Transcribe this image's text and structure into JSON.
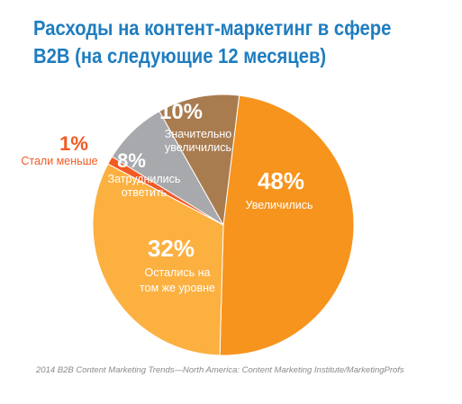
{
  "chart_data": {
    "type": "pie",
    "title_lines": [
      "Расходы на контент-маркетинг в сфере",
      "B2B (на следующие 12 месяцев)"
    ],
    "slices": [
      {
        "key": "increased",
        "value": 48,
        "label": "48%",
        "desc": [
          "Увеличились"
        ],
        "color": "#f7941d",
        "text_color": "#ffffff"
      },
      {
        "key": "same",
        "value": 32,
        "label": "32%",
        "desc": [
          "Остались на",
          "том же уровне"
        ],
        "color": "#fbb040",
        "text_color": "#ffffff"
      },
      {
        "key": "less",
        "value": 1,
        "label": "1%",
        "desc": [
          "Стали меньше"
        ],
        "color": "#f15a24",
        "text_color": "#f15a24"
      },
      {
        "key": "hard",
        "value": 8,
        "label": "8%",
        "desc": [
          "Затруднились",
          "ответить"
        ],
        "color": "#a7a9ac",
        "text_color": "#ffffff"
      },
      {
        "key": "significant",
        "value": 10,
        "label": "10%",
        "desc": [
          "Значительно",
          "увеличились"
        ],
        "color": "#a97c50",
        "text_color": "#ffffff"
      }
    ],
    "legend": "none"
  },
  "source": "2014 B2B Content Marketing Trends—North America: Content Marketing Institute/MarketingProfs"
}
